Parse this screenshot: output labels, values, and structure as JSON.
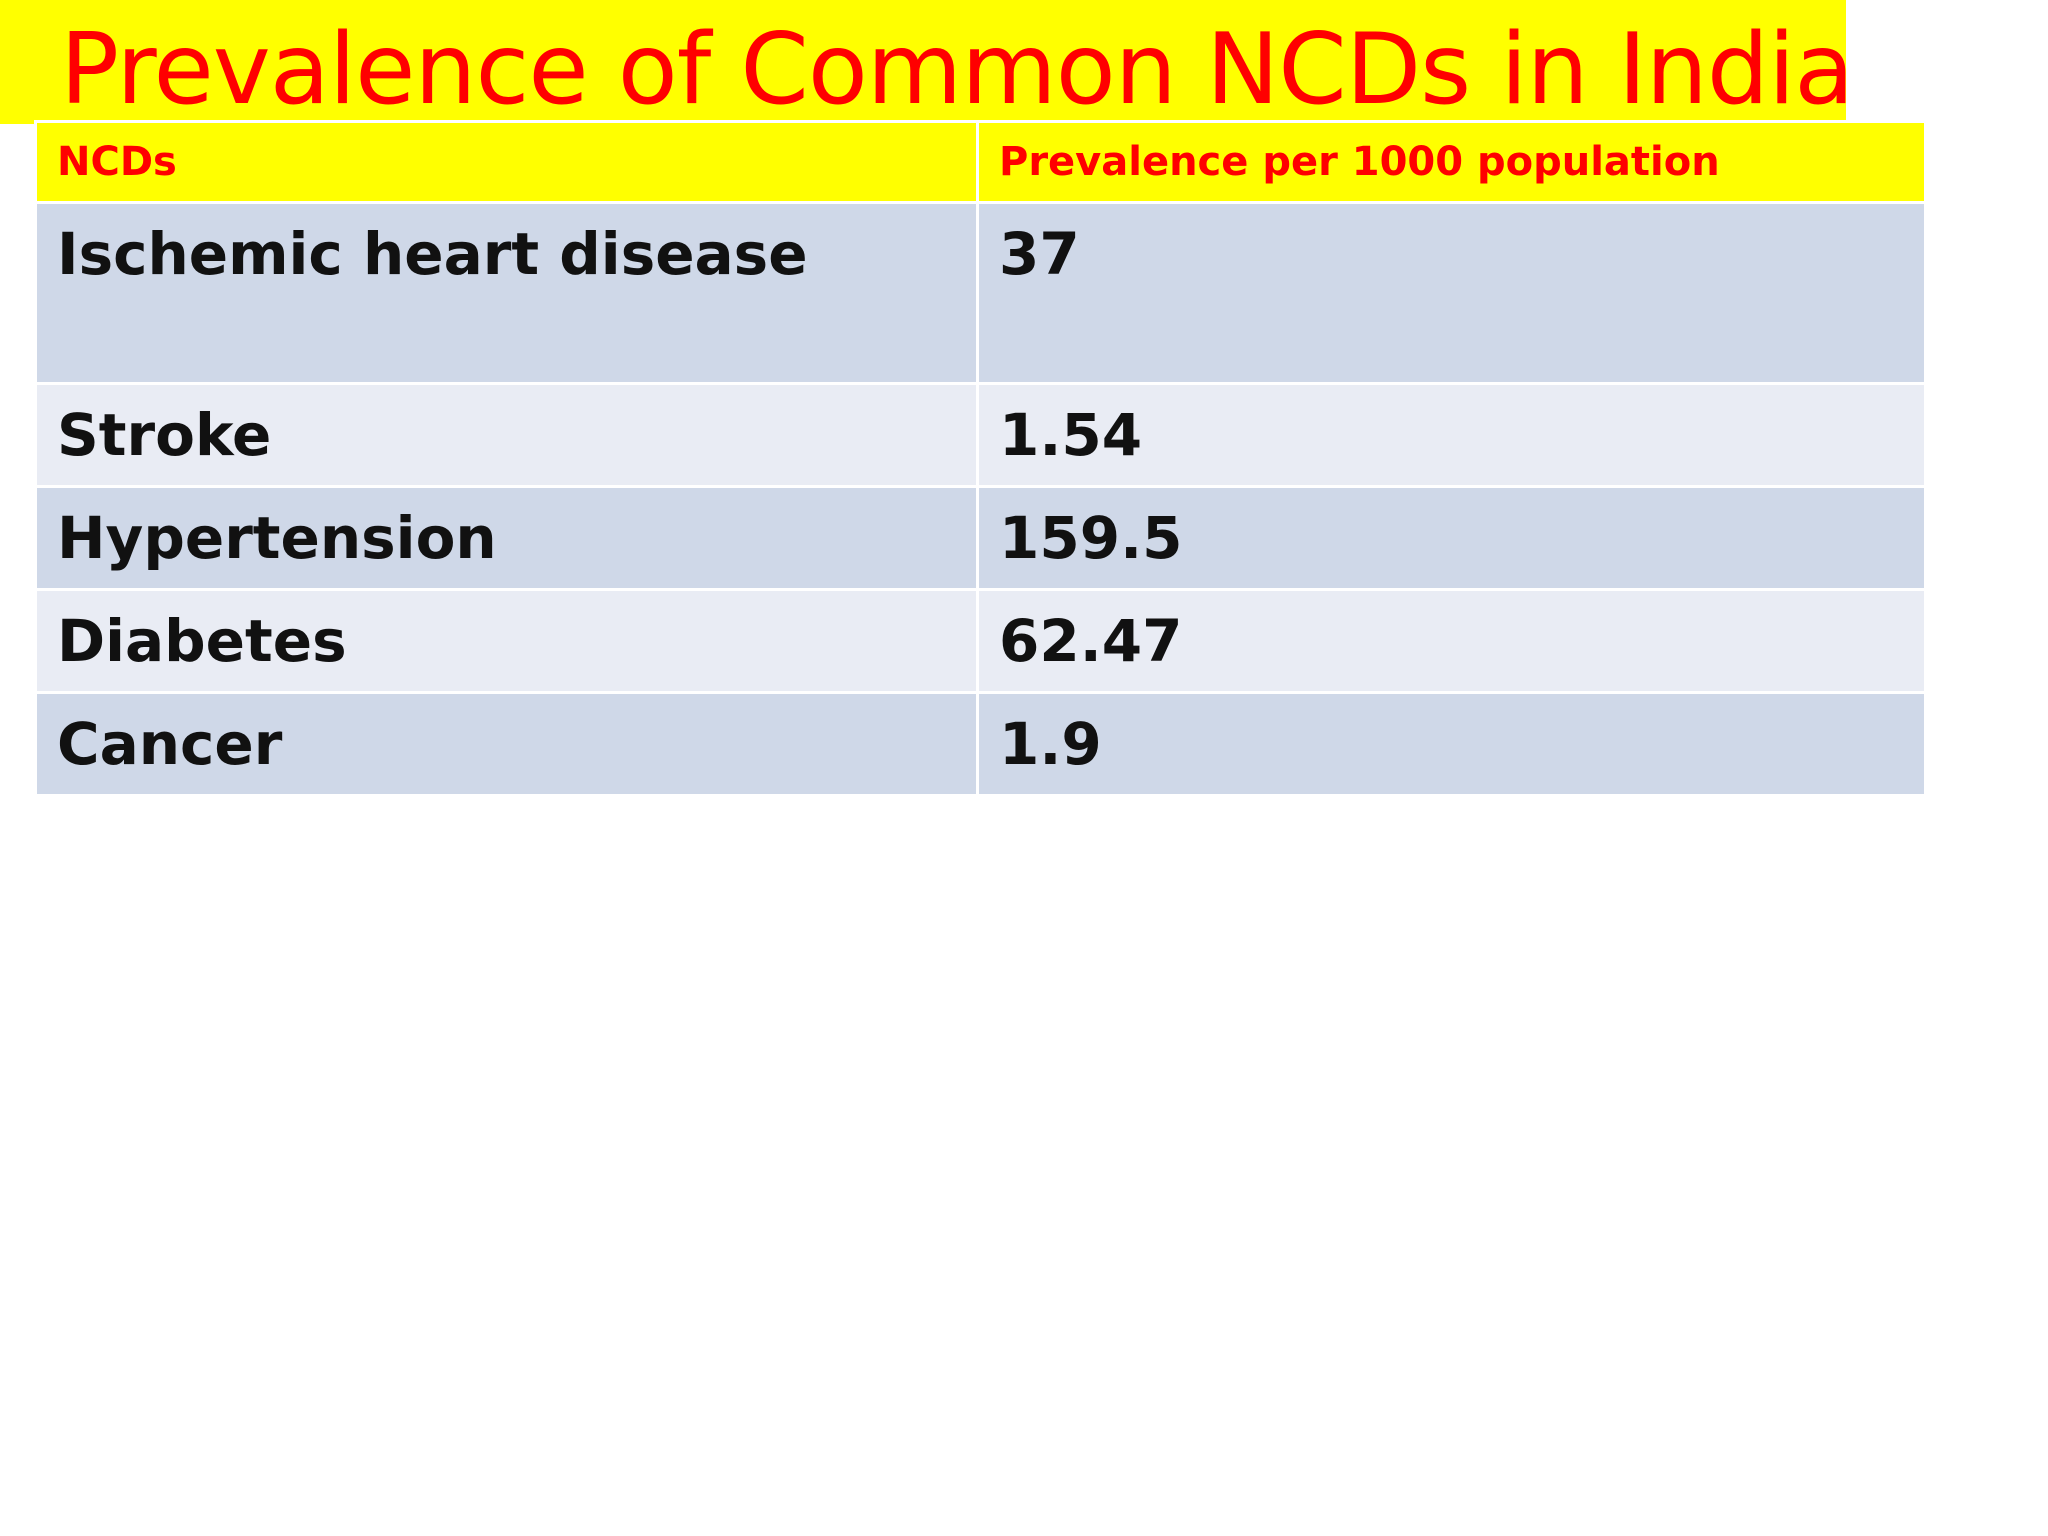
{
  "slide": {
    "title": "Prevalence of Common NCDs in India"
  },
  "table": {
    "headers": [
      "NCDs",
      "Prevalence per 1000 population"
    ],
    "rows": [
      [
        "Ischemic heart disease",
        "37"
      ],
      [
        "Stroke",
        "1.54"
      ],
      [
        "Hypertension",
        "159.5"
      ],
      [
        "Diabetes",
        "62.47"
      ],
      [
        "Cancer",
        "1.9"
      ]
    ]
  },
  "colors": {
    "title_background": "#ffff00",
    "title_text": "#ff0000",
    "row_dark": "#cfd8e8",
    "row_light": "#e9ecf4"
  }
}
